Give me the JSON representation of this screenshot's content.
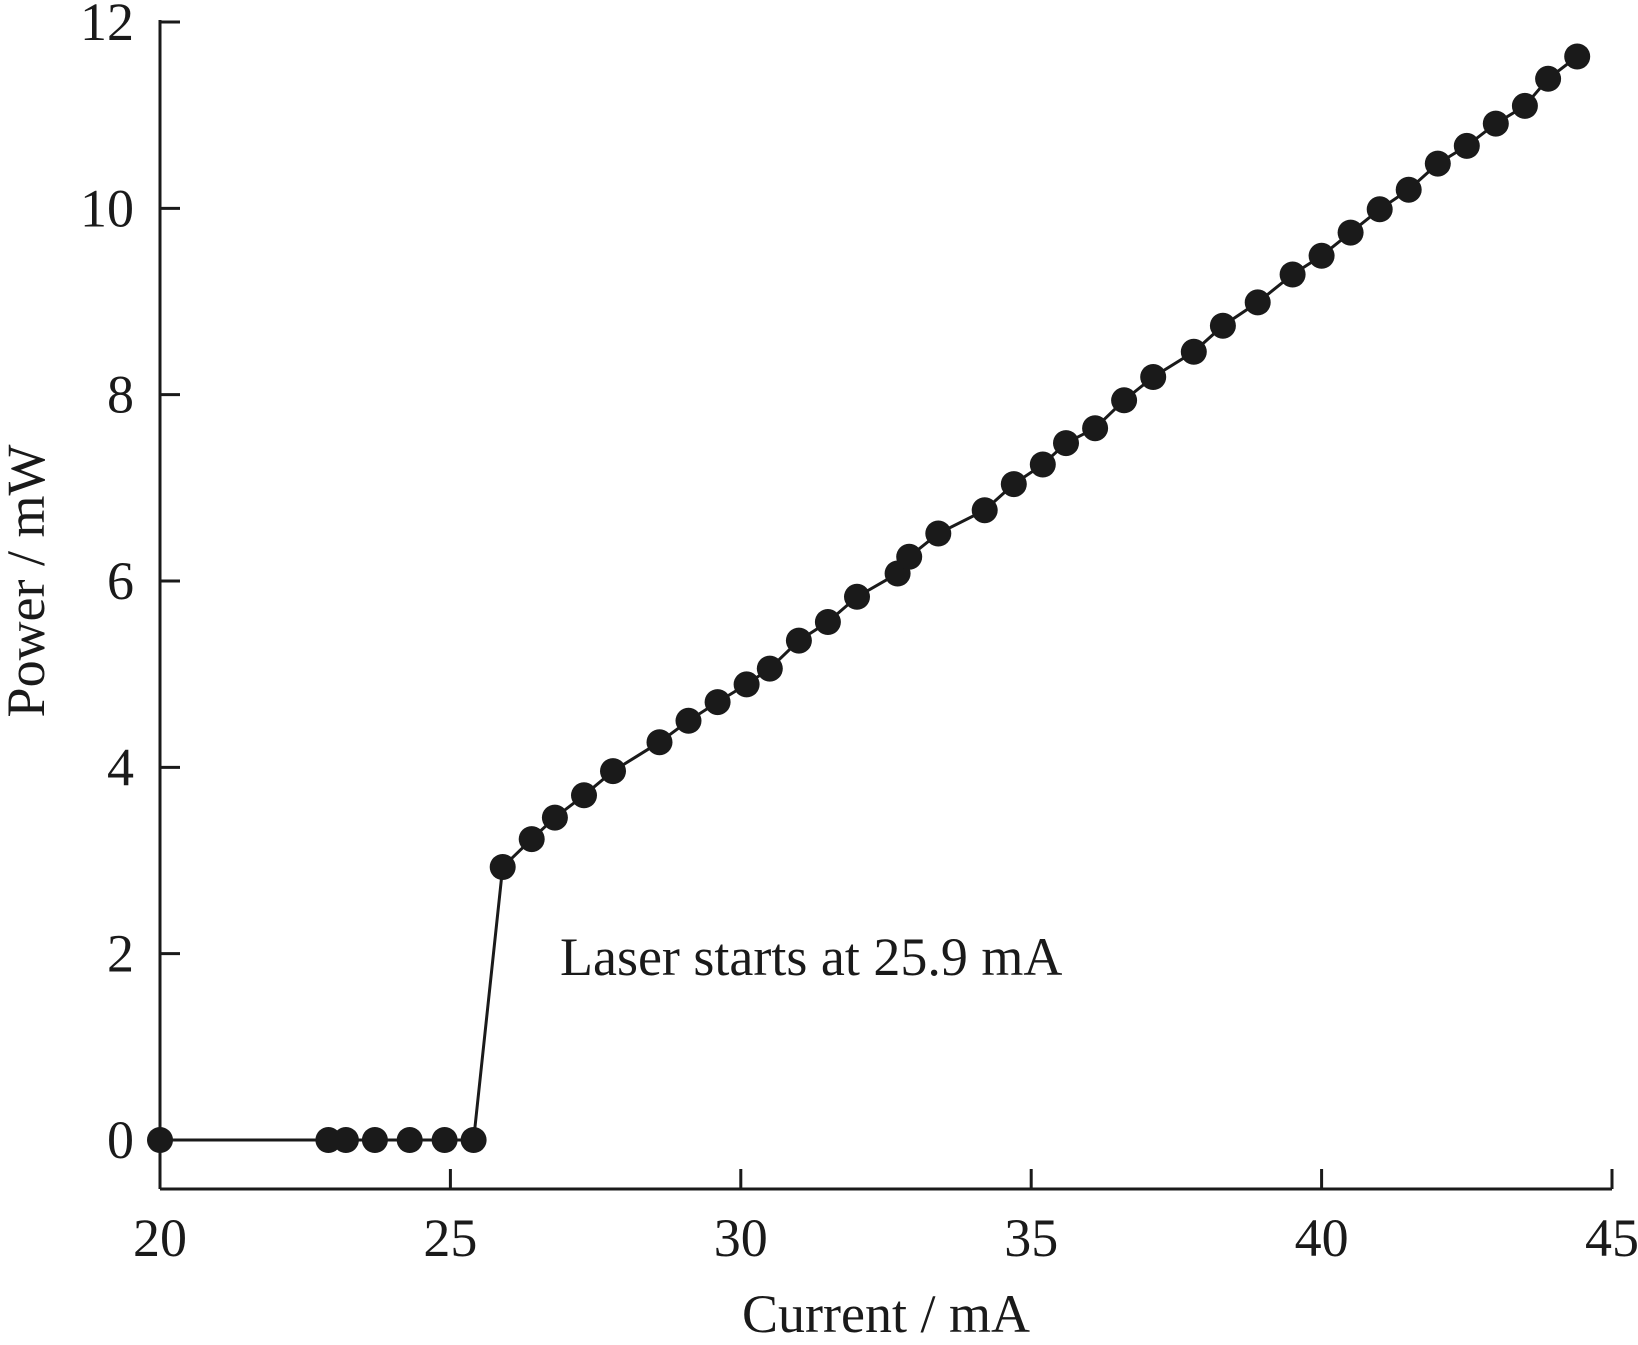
{
  "chart_data": {
    "type": "line",
    "xlabel": "Current / mA",
    "ylabel": "Power / mW",
    "xlim": [
      20,
      45
    ],
    "ylim": [
      0,
      12
    ],
    "x_ticks": [
      20,
      25,
      30,
      35,
      40,
      45
    ],
    "y_ticks": [
      0,
      2,
      4,
      6,
      8,
      10,
      12
    ],
    "grid": false,
    "annotation": {
      "text": "Laser starts at 25.9 mA",
      "x": 26.3,
      "y": 2.0
    },
    "series": [
      {
        "color": "#1a1a1a",
        "marker": "circle",
        "points": [
          [
            20.0,
            0.0
          ],
          [
            22.9,
            0.0
          ],
          [
            23.2,
            0.0
          ],
          [
            23.7,
            0.0
          ],
          [
            24.3,
            0.0
          ],
          [
            24.9,
            0.0
          ],
          [
            25.4,
            0.0
          ],
          [
            25.9,
            2.93
          ],
          [
            26.4,
            3.23
          ],
          [
            26.8,
            3.46
          ],
          [
            27.3,
            3.7
          ],
          [
            27.8,
            3.96
          ],
          [
            28.6,
            4.27
          ],
          [
            29.1,
            4.5
          ],
          [
            29.6,
            4.7
          ],
          [
            30.1,
            4.89
          ],
          [
            30.5,
            5.06
          ],
          [
            31.0,
            5.36
          ],
          [
            31.5,
            5.56
          ],
          [
            32.0,
            5.83
          ],
          [
            32.7,
            6.08
          ],
          [
            32.9,
            6.26
          ],
          [
            33.4,
            6.51
          ],
          [
            34.2,
            6.76
          ],
          [
            34.7,
            7.04
          ],
          [
            35.2,
            7.25
          ],
          [
            35.6,
            7.48
          ],
          [
            36.1,
            7.64
          ],
          [
            36.6,
            7.94
          ],
          [
            37.1,
            8.19
          ],
          [
            37.8,
            8.46
          ],
          [
            38.3,
            8.74
          ],
          [
            38.9,
            8.99
          ],
          [
            39.5,
            9.29
          ],
          [
            40.0,
            9.49
          ],
          [
            40.5,
            9.74
          ],
          [
            41.0,
            9.99
          ],
          [
            41.5,
            10.2
          ],
          [
            42.0,
            10.48
          ],
          [
            42.5,
            10.67
          ],
          [
            43.0,
            10.91
          ],
          [
            43.5,
            11.1
          ],
          [
            43.9,
            11.39
          ],
          [
            44.4,
            11.63
          ]
        ]
      }
    ]
  }
}
